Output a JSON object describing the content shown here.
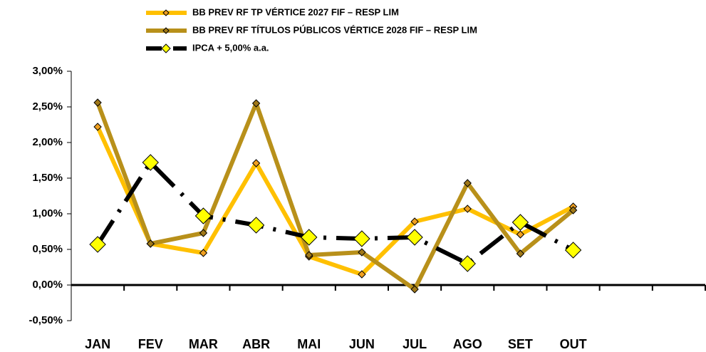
{
  "chart_data": {
    "type": "line",
    "categories": [
      "JAN",
      "FEV",
      "MAR",
      "ABR",
      "MAI",
      "JUN",
      "JUL",
      "AGO",
      "SET",
      "OUT",
      null,
      null
    ],
    "series": [
      {
        "name": "BB PREV RF TP VÉRTICE 2027 FIF – RESP LIM",
        "color": "#ffc000",
        "marker_color": "#f0a020",
        "values": [
          2.22,
          0.58,
          0.45,
          1.71,
          0.4,
          0.15,
          0.89,
          1.07,
          0.71,
          1.1,
          null,
          null
        ]
      },
      {
        "name": "BB PREV RF TÍTULOS PÚBLICOS VÉRTICE 2028 FIF – RESP LIM",
        "color": "#b8901a",
        "marker_color": "#a07818",
        "values": [
          2.56,
          0.58,
          0.73,
          2.55,
          0.42,
          0.46,
          -0.06,
          1.43,
          0.44,
          1.05,
          null,
          null
        ]
      },
      {
        "name": "IPCA + 5,00% a.a.",
        "color": "#000000",
        "marker_color": "#ffff00",
        "dashed": true,
        "values": [
          0.57,
          1.72,
          0.97,
          0.84,
          0.67,
          0.65,
          0.67,
          0.3,
          0.88,
          0.49,
          null,
          null
        ]
      }
    ],
    "ylim": [
      -0.5,
      3.0
    ],
    "yticks": [
      {
        "value": -0.5,
        "label": "-0,50%"
      },
      {
        "value": 0,
        "label": "0,00%"
      },
      {
        "value": 0.5,
        "label": "0,50%"
      },
      {
        "value": 1.0,
        "label": "1,00%"
      },
      {
        "value": 1.5,
        "label": "1,50%"
      },
      {
        "value": 2.0,
        "label": "2,00%"
      },
      {
        "value": 2.5,
        "label": "2,50%"
      },
      {
        "value": 3.0,
        "label": "3,00%"
      }
    ]
  }
}
